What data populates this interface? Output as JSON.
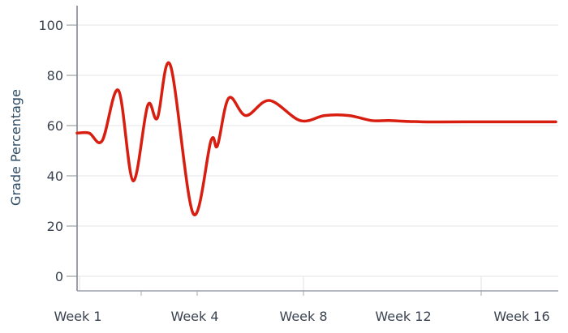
{
  "chart_data": {
    "type": "line",
    "title": "",
    "xlabel": "",
    "ylabel": "Grade Percentage",
    "ylim": [
      0,
      100
    ],
    "yticks": [
      0,
      20,
      40,
      60,
      80,
      100
    ],
    "xtick_labels": [
      "Week 1",
      "Week 4",
      "Week 8",
      "Week 12",
      "Week 16"
    ],
    "grid": true,
    "legend": null,
    "line_color": "#d81e10",
    "series": [
      {
        "name": "Grade Percentage",
        "points": [
          {
            "x": 95,
            "y": 57
          },
          {
            "x": 110,
            "y": 57
          },
          {
            "x": 126,
            "y": 54
          },
          {
            "x": 146,
            "y": 74
          },
          {
            "x": 164,
            "y": 38
          },
          {
            "x": 182,
            "y": 68
          },
          {
            "x": 194,
            "y": 63
          },
          {
            "x": 210,
            "y": 84
          },
          {
            "x": 238,
            "y": 25
          },
          {
            "x": 260,
            "y": 54
          },
          {
            "x": 268,
            "y": 52
          },
          {
            "x": 282,
            "y": 71
          },
          {
            "x": 303,
            "y": 64
          },
          {
            "x": 332,
            "y": 70
          },
          {
            "x": 370,
            "y": 62
          },
          {
            "x": 400,
            "y": 64
          },
          {
            "x": 430,
            "y": 64
          },
          {
            "x": 458,
            "y": 62
          },
          {
            "x": 480,
            "y": 62
          },
          {
            "x": 520,
            "y": 61.5
          },
          {
            "x": 600,
            "y": 61.5
          },
          {
            "x": 685,
            "y": 61.5
          }
        ]
      }
    ]
  }
}
